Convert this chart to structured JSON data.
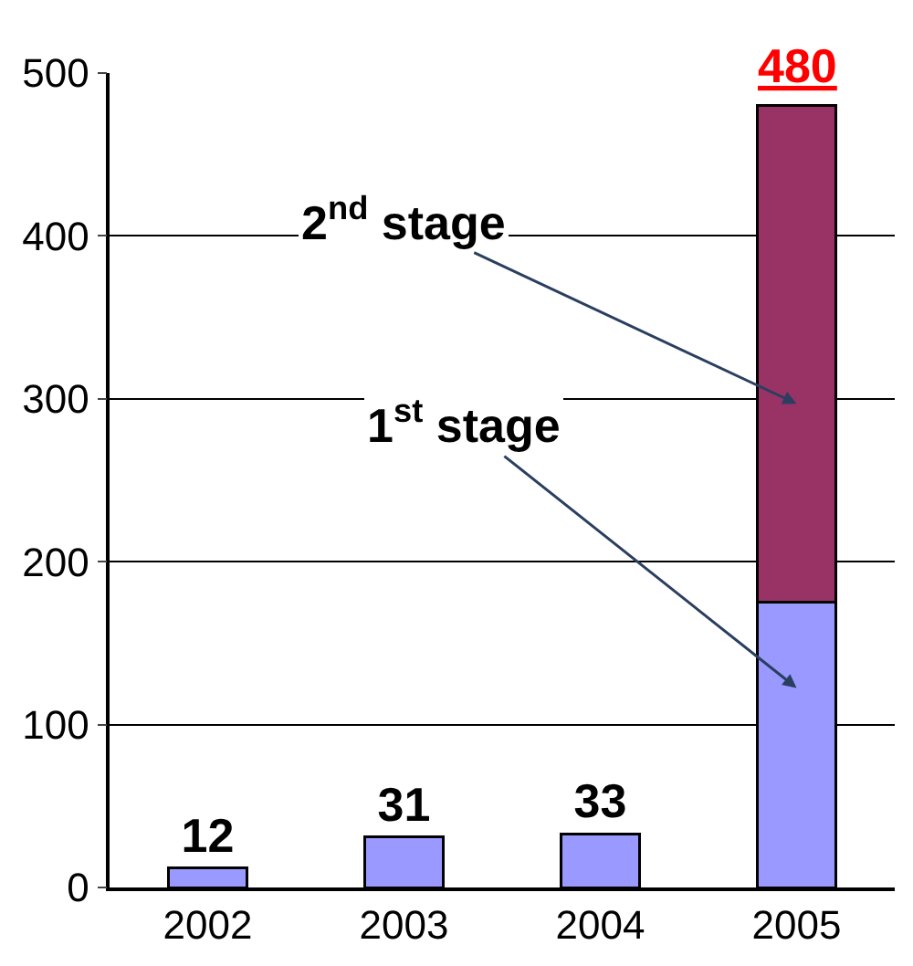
{
  "chart_data": {
    "type": "bar",
    "stacked": true,
    "categories": [
      "2002",
      "2003",
      "2004",
      "2005"
    ],
    "series": [
      {
        "name": "1$^{st}$ stage",
        "color": "#9999ff",
        "values": [
          12,
          31,
          33,
          175
        ],
        "value_labels": [
          "12",
          "31",
          "33",
          null
        ]
      },
      {
        "name": "2$^{nd}$ stage",
        "color": "#993366",
        "values": [
          null,
          null,
          null,
          305
        ]
      }
    ],
    "annotations": [
      {
        "text": "480",
        "x": "2005",
        "y": 480
      }
    ],
    "ylim": [
      0,
      500
    ],
    "yticks": [
      0,
      100,
      200,
      300,
      400,
      500
    ],
    "grid": "y",
    "legend": false
  }
}
